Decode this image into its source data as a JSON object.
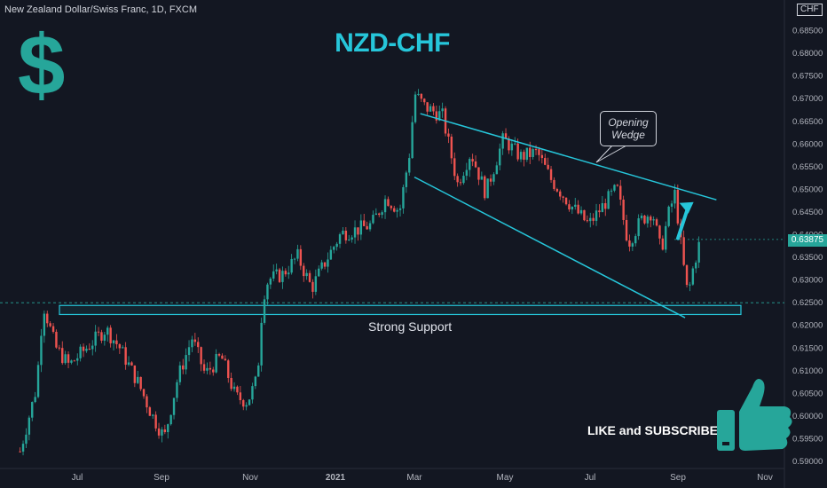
{
  "header": {
    "symbol_text": "New Zealand Dollar/Swiss Franc, 1D, FXCM",
    "currency_badge": "CHF"
  },
  "annotations": {
    "main_title": "NZD-CHF",
    "dollar_symbol": "$",
    "wedge_label_line1": "Opening",
    "wedge_label_line2": "Wedge",
    "support_label": "Strong Support",
    "cta_label": "LIKE and SUBSCRIBE"
  },
  "colors": {
    "background": "#131722",
    "up_candle": "#26a69a",
    "down_candle": "#ef5350",
    "annotation": "#26c6da",
    "text": "#d1d4dc"
  },
  "chart_data": {
    "type": "candlestick",
    "title": "NZD-CHF",
    "x_axis_labels": [
      "Jul",
      "Sep",
      "Nov",
      "2021",
      "Mar",
      "May",
      "Jul",
      "Sep",
      "Nov"
    ],
    "y_axis_labels": [
      "0.68500",
      "0.68000",
      "0.67500",
      "0.67000",
      "0.66500",
      "0.66000",
      "0.65500",
      "0.65000",
      "0.64500",
      "0.64000",
      "0.63500",
      "0.63000",
      "0.62500",
      "0.62000",
      "0.61500",
      "0.61000",
      "0.60500",
      "0.60000",
      "0.59500",
      "0.59000"
    ],
    "ylim": [
      0.5888,
      0.6915
    ],
    "current_price": "0.63875",
    "current_price_value": 0.63875,
    "support_zone": {
      "low": 0.6222,
      "high": 0.6242
    },
    "wedge_upper_line": {
      "from": [
        "2021-03-05",
        0.6665
      ],
      "to": [
        "2021-09-28",
        0.6475
      ]
    },
    "wedge_lower_line": {
      "from": [
        "2021-03-01",
        0.6525
      ],
      "to": [
        "2021-09-06",
        0.6215
      ]
    },
    "projection_arrow": {
      "from": [
        "2021-09-01",
        0.639
      ],
      "to": [
        "2021-09-12",
        0.647
      ]
    },
    "price_path": [
      [
        "2020-05-20",
        0.592
      ],
      [
        "2020-06-01",
        0.606
      ],
      [
        "2020-06-06",
        0.6245
      ],
      [
        "2020-06-15",
        0.615
      ],
      [
        "2020-06-25",
        0.611
      ],
      [
        "2020-07-05",
        0.614
      ],
      [
        "2020-07-22",
        0.619
      ],
      [
        "2020-08-01",
        0.615
      ],
      [
        "2020-08-15",
        0.607
      ],
      [
        "2020-08-25",
        0.6
      ],
      [
        "2020-09-03",
        0.595
      ],
      [
        "2020-09-12",
        0.608
      ],
      [
        "2020-09-22",
        0.617
      ],
      [
        "2020-10-01",
        0.609
      ],
      [
        "2020-10-12",
        0.613
      ],
      [
        "2020-10-22",
        0.604
      ],
      [
        "2020-10-30",
        0.603
      ],
      [
        "2020-11-06",
        0.608
      ],
      [
        "2020-11-10",
        0.626
      ],
      [
        "2020-11-14",
        0.63
      ],
      [
        "2020-11-24",
        0.631
      ],
      [
        "2020-12-05",
        0.635
      ],
      [
        "2020-12-15",
        0.628
      ],
      [
        "2020-12-25",
        0.634
      ],
      [
        "2021-01-05",
        0.64
      ],
      [
        "2021-01-18",
        0.641
      ],
      [
        "2021-01-28",
        0.642
      ],
      [
        "2021-02-08",
        0.648
      ],
      [
        "2021-02-18",
        0.645
      ],
      [
        "2021-02-26",
        0.659
      ],
      [
        "2021-03-01",
        0.671
      ],
      [
        "2021-03-08",
        0.668
      ],
      [
        "2021-03-20",
        0.666
      ],
      [
        "2021-03-30",
        0.651
      ],
      [
        "2021-04-08",
        0.658
      ],
      [
        "2021-04-18",
        0.649
      ],
      [
        "2021-04-30",
        0.661
      ],
      [
        "2021-05-12",
        0.657
      ],
      [
        "2021-05-24",
        0.658
      ],
      [
        "2021-06-03",
        0.652
      ],
      [
        "2021-06-18",
        0.646
      ],
      [
        "2021-06-30",
        0.642
      ],
      [
        "2021-07-12",
        0.647
      ],
      [
        "2021-07-20",
        0.65
      ],
      [
        "2021-07-28",
        0.638
      ],
      [
        "2021-08-06",
        0.643
      ],
      [
        "2021-08-14",
        0.645
      ],
      [
        "2021-08-20",
        0.636
      ],
      [
        "2021-08-25",
        0.644
      ],
      [
        "2021-08-30",
        0.649
      ],
      [
        "2021-09-04",
        0.635
      ],
      [
        "2021-09-08",
        0.6262
      ],
      [
        "2021-09-12",
        0.633
      ],
      [
        "2021-09-17",
        0.639
      ]
    ]
  }
}
